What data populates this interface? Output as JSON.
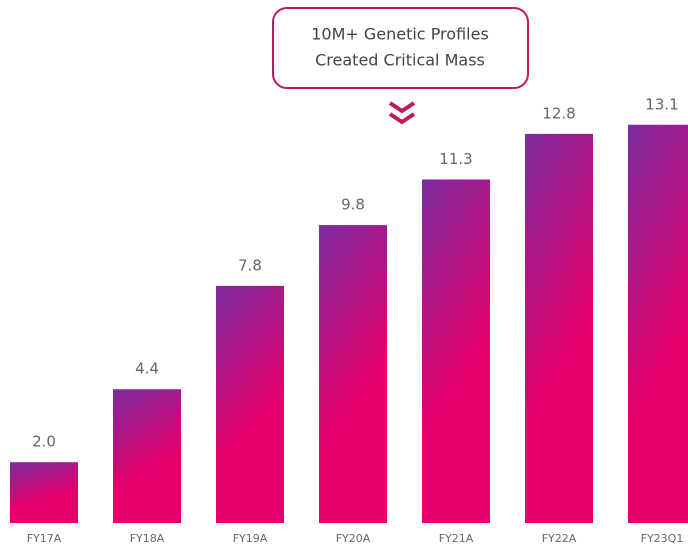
{
  "chart_data": {
    "type": "bar",
    "annotation": [
      "10M+ Genetic Profiles",
      "Created Critical Mass"
    ],
    "categories": [
      "FY17A",
      "FY18A",
      "FY19A",
      "FY20A",
      "FY21A",
      "FY22A",
      "FY23Q1"
    ],
    "values": [
      2.0,
      4.4,
      7.8,
      9.8,
      11.3,
      12.8,
      13.1
    ],
    "value_labels": [
      "2.0",
      "4.4",
      "7.8",
      "9.8",
      "11.3",
      "12.8",
      "13.1"
    ],
    "gradient": [
      "#7b2ca0",
      "#e5006c"
    ]
  }
}
